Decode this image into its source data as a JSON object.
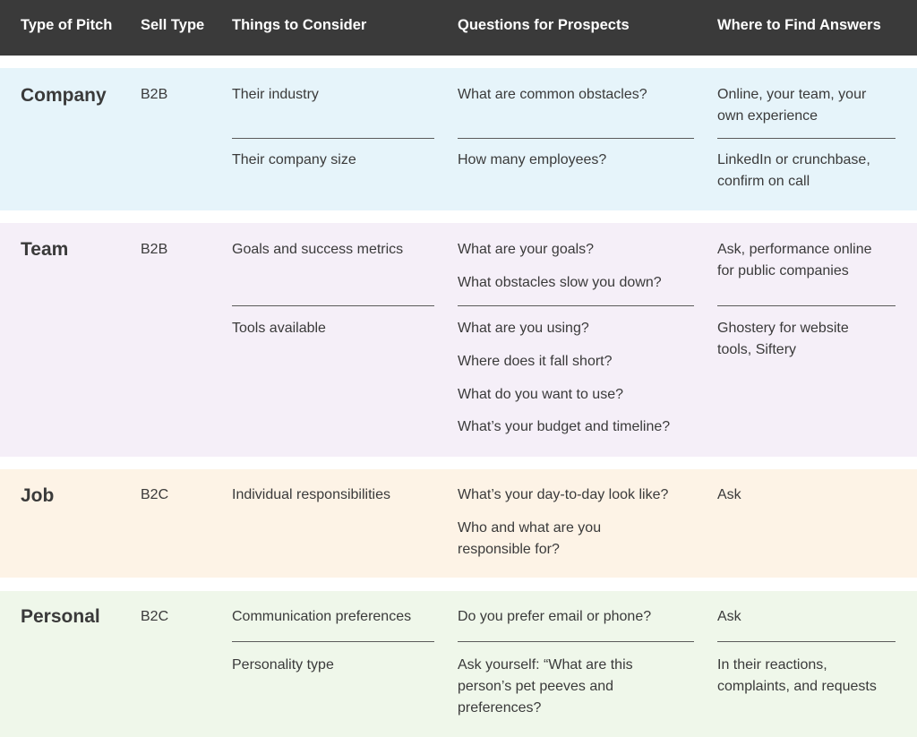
{
  "colors": {
    "header_bg": "#3a3a3a",
    "company_bg": "#e6f4fa",
    "team_bg": "#f5eff8",
    "job_bg": "#fdf3e6",
    "personal_bg": "#eff7ea"
  },
  "headers": {
    "type": "Type of Pitch",
    "sell": "Sell Type",
    "consider": "Things to Consider",
    "questions": "Questions for Prospects",
    "where": "Where to Find Answers"
  },
  "company": {
    "type": "Company",
    "sell": "B2B",
    "consider": [
      "Their industry",
      "Their company size"
    ],
    "questions": [
      "What are common obstacles?",
      "How many employees?"
    ],
    "answers": [
      [
        "Online, your team, your",
        "own experience"
      ],
      [
        "LinkedIn or crunchbase,",
        "confirm on call"
      ]
    ]
  },
  "team": {
    "type": "Team",
    "sell": "B2B",
    "consider": [
      "Goals and success metrics",
      "Tools available"
    ],
    "questions": [
      "What are your goals?",
      "What obstacles slow you down?",
      "What are you using?",
      "Where does it fall short?",
      "What do you want to use?",
      "What’s your budget and timeline?"
    ],
    "answers": [
      [
        "Ask, performance online",
        "for public companies"
      ],
      [
        "Ghostery for website",
        "tools, Siftery"
      ]
    ]
  },
  "job": {
    "type": "Job",
    "sell": "B2C",
    "consider": [
      "Individual responsibilities"
    ],
    "questions": [
      "What’s your day-to-day look like?",
      "Who and what are you",
      "responsible for?"
    ],
    "answers": [
      "Ask"
    ]
  },
  "personal": {
    "type": "Personal",
    "sell": "B2C",
    "consider": [
      "Communication preferences",
      "Personality type"
    ],
    "questions": [
      "Do you prefer email or phone?",
      "Ask yourself: “What are this",
      "person’s pet peeves and",
      "preferences?"
    ],
    "answers": [
      "Ask",
      "In their reactions,",
      "complaints, and requests"
    ]
  }
}
